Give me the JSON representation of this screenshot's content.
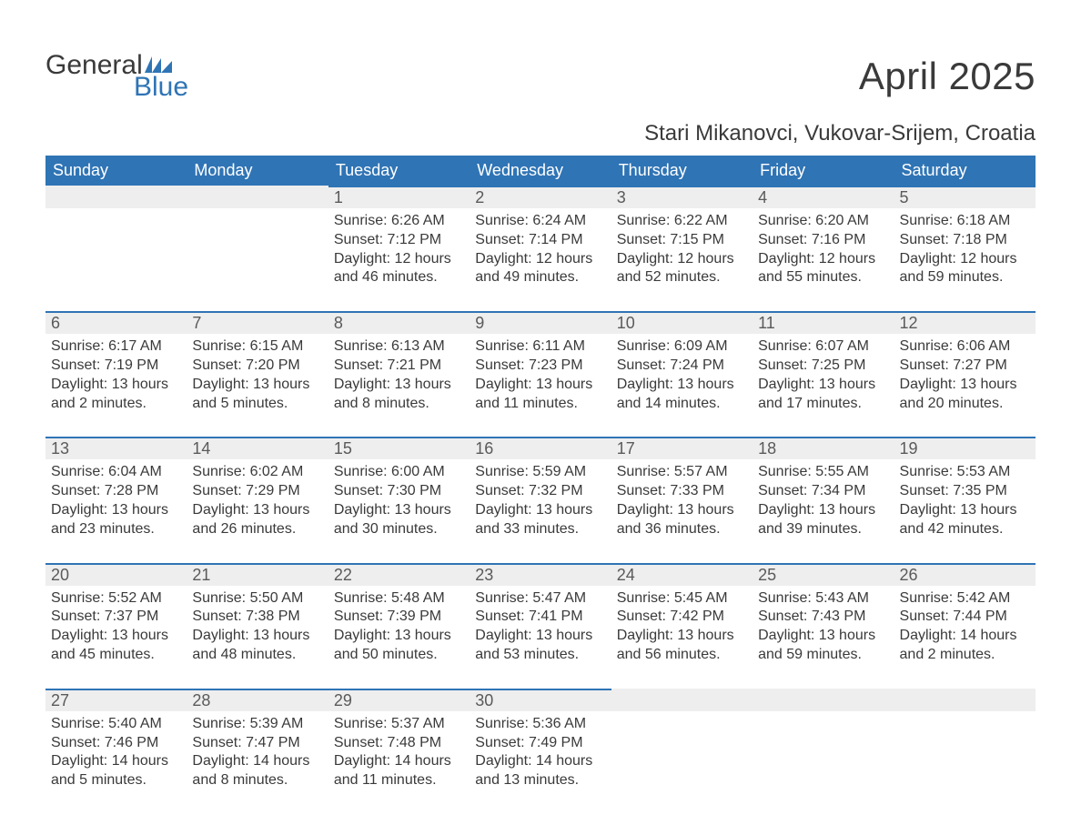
{
  "logo": {
    "line1": "General",
    "line2": "Blue"
  },
  "title": "April 2025",
  "location": "Stari Mikanovci, Vukovar-Srijem, Croatia",
  "colors": {
    "header_bg": "#2f74b5",
    "header_text": "#ffffff",
    "daynum_bg": "#eeeeee",
    "daynum_border": "#2f74b5",
    "text": "#3a3a3a",
    "logo_blue": "#2f74b5"
  },
  "day_headers": [
    "Sunday",
    "Monday",
    "Tuesday",
    "Wednesday",
    "Thursday",
    "Friday",
    "Saturday"
  ],
  "weeks": [
    [
      null,
      null,
      {
        "num": "1",
        "sunrise": "6:26 AM",
        "sunset": "7:12 PM",
        "daylight_h": "12",
        "daylight_m": "46"
      },
      {
        "num": "2",
        "sunrise": "6:24 AM",
        "sunset": "7:14 PM",
        "daylight_h": "12",
        "daylight_m": "49"
      },
      {
        "num": "3",
        "sunrise": "6:22 AM",
        "sunset": "7:15 PM",
        "daylight_h": "12",
        "daylight_m": "52"
      },
      {
        "num": "4",
        "sunrise": "6:20 AM",
        "sunset": "7:16 PM",
        "daylight_h": "12",
        "daylight_m": "55"
      },
      {
        "num": "5",
        "sunrise": "6:18 AM",
        "sunset": "7:18 PM",
        "daylight_h": "12",
        "daylight_m": "59"
      }
    ],
    [
      {
        "num": "6",
        "sunrise": "6:17 AM",
        "sunset": "7:19 PM",
        "daylight_h": "13",
        "daylight_m": "2"
      },
      {
        "num": "7",
        "sunrise": "6:15 AM",
        "sunset": "7:20 PM",
        "daylight_h": "13",
        "daylight_m": "5"
      },
      {
        "num": "8",
        "sunrise": "6:13 AM",
        "sunset": "7:21 PM",
        "daylight_h": "13",
        "daylight_m": "8"
      },
      {
        "num": "9",
        "sunrise": "6:11 AM",
        "sunset": "7:23 PM",
        "daylight_h": "13",
        "daylight_m": "11"
      },
      {
        "num": "10",
        "sunrise": "6:09 AM",
        "sunset": "7:24 PM",
        "daylight_h": "13",
        "daylight_m": "14"
      },
      {
        "num": "11",
        "sunrise": "6:07 AM",
        "sunset": "7:25 PM",
        "daylight_h": "13",
        "daylight_m": "17"
      },
      {
        "num": "12",
        "sunrise": "6:06 AM",
        "sunset": "7:27 PM",
        "daylight_h": "13",
        "daylight_m": "20"
      }
    ],
    [
      {
        "num": "13",
        "sunrise": "6:04 AM",
        "sunset": "7:28 PM",
        "daylight_h": "13",
        "daylight_m": "23"
      },
      {
        "num": "14",
        "sunrise": "6:02 AM",
        "sunset": "7:29 PM",
        "daylight_h": "13",
        "daylight_m": "26"
      },
      {
        "num": "15",
        "sunrise": "6:00 AM",
        "sunset": "7:30 PM",
        "daylight_h": "13",
        "daylight_m": "30"
      },
      {
        "num": "16",
        "sunrise": "5:59 AM",
        "sunset": "7:32 PM",
        "daylight_h": "13",
        "daylight_m": "33"
      },
      {
        "num": "17",
        "sunrise": "5:57 AM",
        "sunset": "7:33 PM",
        "daylight_h": "13",
        "daylight_m": "36"
      },
      {
        "num": "18",
        "sunrise": "5:55 AM",
        "sunset": "7:34 PM",
        "daylight_h": "13",
        "daylight_m": "39"
      },
      {
        "num": "19",
        "sunrise": "5:53 AM",
        "sunset": "7:35 PM",
        "daylight_h": "13",
        "daylight_m": "42"
      }
    ],
    [
      {
        "num": "20",
        "sunrise": "5:52 AM",
        "sunset": "7:37 PM",
        "daylight_h": "13",
        "daylight_m": "45"
      },
      {
        "num": "21",
        "sunrise": "5:50 AM",
        "sunset": "7:38 PM",
        "daylight_h": "13",
        "daylight_m": "48"
      },
      {
        "num": "22",
        "sunrise": "5:48 AM",
        "sunset": "7:39 PM",
        "daylight_h": "13",
        "daylight_m": "50"
      },
      {
        "num": "23",
        "sunrise": "5:47 AM",
        "sunset": "7:41 PM",
        "daylight_h": "13",
        "daylight_m": "53"
      },
      {
        "num": "24",
        "sunrise": "5:45 AM",
        "sunset": "7:42 PM",
        "daylight_h": "13",
        "daylight_m": "56"
      },
      {
        "num": "25",
        "sunrise": "5:43 AM",
        "sunset": "7:43 PM",
        "daylight_h": "13",
        "daylight_m": "59"
      },
      {
        "num": "26",
        "sunrise": "5:42 AM",
        "sunset": "7:44 PM",
        "daylight_h": "14",
        "daylight_m": "2"
      }
    ],
    [
      {
        "num": "27",
        "sunrise": "5:40 AM",
        "sunset": "7:46 PM",
        "daylight_h": "14",
        "daylight_m": "5"
      },
      {
        "num": "28",
        "sunrise": "5:39 AM",
        "sunset": "7:47 PM",
        "daylight_h": "14",
        "daylight_m": "8"
      },
      {
        "num": "29",
        "sunrise": "5:37 AM",
        "sunset": "7:48 PM",
        "daylight_h": "14",
        "daylight_m": "11"
      },
      {
        "num": "30",
        "sunrise": "5:36 AM",
        "sunset": "7:49 PM",
        "daylight_h": "14",
        "daylight_m": "13"
      },
      null,
      null,
      null
    ]
  ],
  "labels": {
    "sunrise_prefix": "Sunrise: ",
    "sunset_prefix": "Sunset: ",
    "daylight_prefix": "Daylight: ",
    "hours_word": " hours",
    "and_word": "and ",
    "minutes_word": " minutes."
  }
}
